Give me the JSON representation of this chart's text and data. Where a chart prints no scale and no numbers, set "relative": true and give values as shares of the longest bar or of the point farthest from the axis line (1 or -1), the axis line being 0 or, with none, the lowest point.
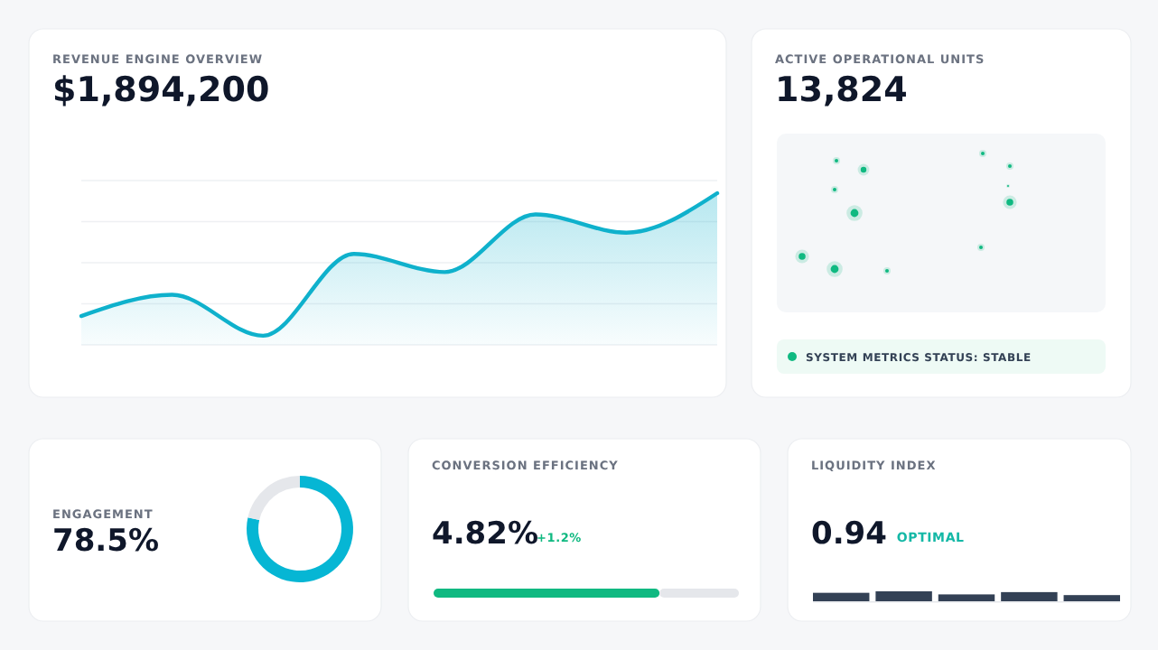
{
  "chart_data": [
    {
      "type": "area",
      "title": "REVENUE ENGINE OVERVIEW",
      "subtitle": "$1,894,200",
      "relative": true,
      "grid": "y",
      "categories": [
        null,
        null,
        null,
        null,
        null,
        null,
        null,
        null
      ],
      "color": "#0fb1cc",
      "values": [
        0.19,
        0.33,
        0.06,
        0.6,
        0.48,
        0.86,
        0.74,
        1
      ]
    },
    {
      "type": "other",
      "title": "ACTIVE OPERATIONAL UNITS",
      "subtitle": "13,824",
      "annotations": [
        "SYSTEM METRICS STATUS: STABLE"
      ]
    },
    {
      "type": "donut",
      "title": "ENGAGEMENT",
      "subtitle": "78.5%",
      "categories": [
        null,
        null
      ],
      "values": [
        78.5,
        21.5
      ],
      "colors": [
        "#06b6d4",
        "#e5e7eb"
      ]
    },
    {
      "type": "bar",
      "title": "CONVERSION EFFICIENCY",
      "subtitle": "4.82%",
      "orientation": "horizontal",
      "stacked": true,
      "relative": true,
      "categories": [
        null
      ],
      "series": [
        {
          "color": "#10b981",
          "values": [
            0.74
          ]
        },
        {
          "color": "#e5e7eb",
          "values": [
            0.26
          ]
        }
      ],
      "annotations": [
        "+1.2%"
      ]
    },
    {
      "type": "bar",
      "title": "LIQUIDITY INDEX",
      "subtitle": "0.94",
      "relative": true,
      "categories": [
        null,
        null,
        null,
        null,
        null
      ],
      "color": "#334155",
      "values": [
        0.85,
        1,
        0.69,
        0.92,
        0.62
      ],
      "annotations": [
        "OPTIMAL"
      ]
    }
  ]
}
